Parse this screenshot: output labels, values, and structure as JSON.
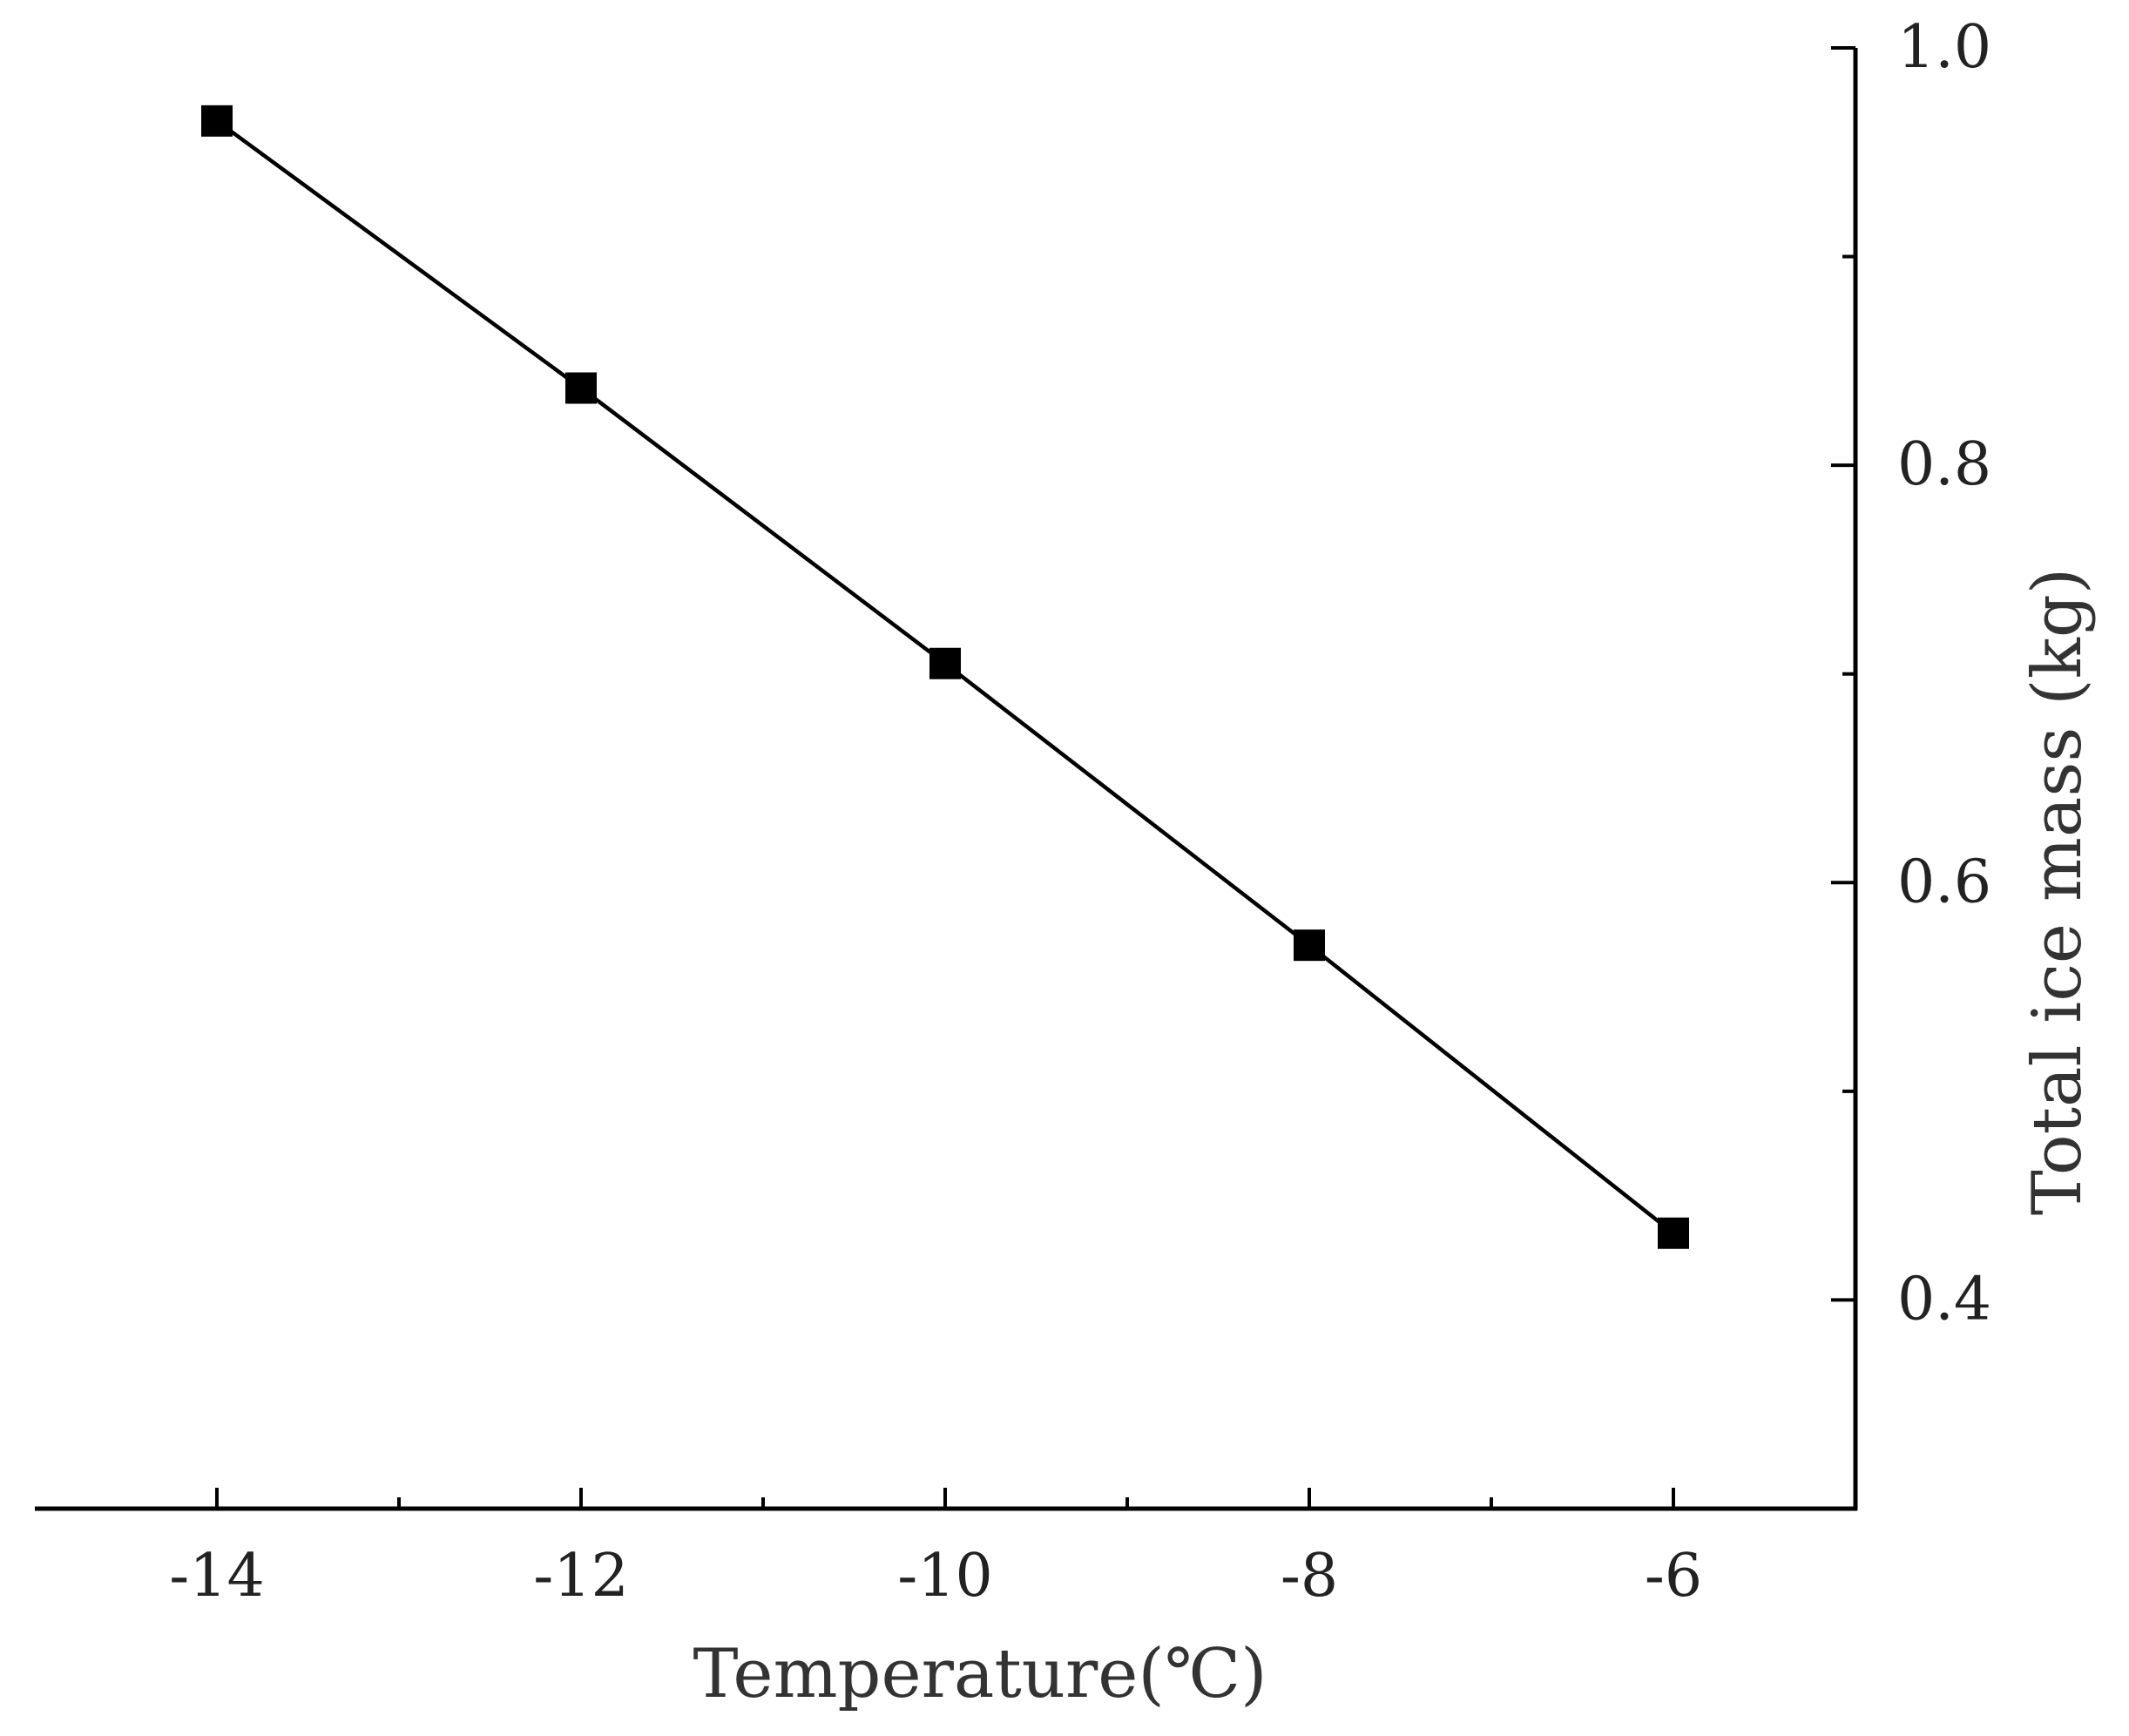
{
  "chart_data": {
    "type": "line",
    "title": "",
    "xlabel": "Temperature(℃)",
    "ylabel": "Total ice mass (kg)",
    "x": [
      -14,
      -12,
      -10,
      -8,
      -6
    ],
    "series": [
      {
        "values": [
          0.965,
          0.837,
          0.705,
          0.57,
          0.432
        ],
        "marker": "square",
        "color": "#000000"
      }
    ],
    "xlim": [
      -15,
      -5
    ],
    "ylim": [
      0.3,
      1.0
    ],
    "x_ticks": [
      -14,
      -12,
      -10,
      -8,
      -6
    ],
    "x_minor_ticks": [
      -13,
      -11,
      -9,
      -7
    ],
    "y_ticks": [
      0.4,
      0.6,
      0.8,
      1.0
    ],
    "y_minor_ticks": [
      0.5,
      0.7,
      0.9
    ],
    "x_tick_labels": [
      "-14",
      "-12",
      "-10",
      "-8",
      "-6"
    ],
    "y_tick_labels": [
      "0.4",
      "0.6",
      "0.8",
      "1.0"
    ],
    "y_axis_side": "right",
    "grid": false,
    "legend": "none"
  }
}
